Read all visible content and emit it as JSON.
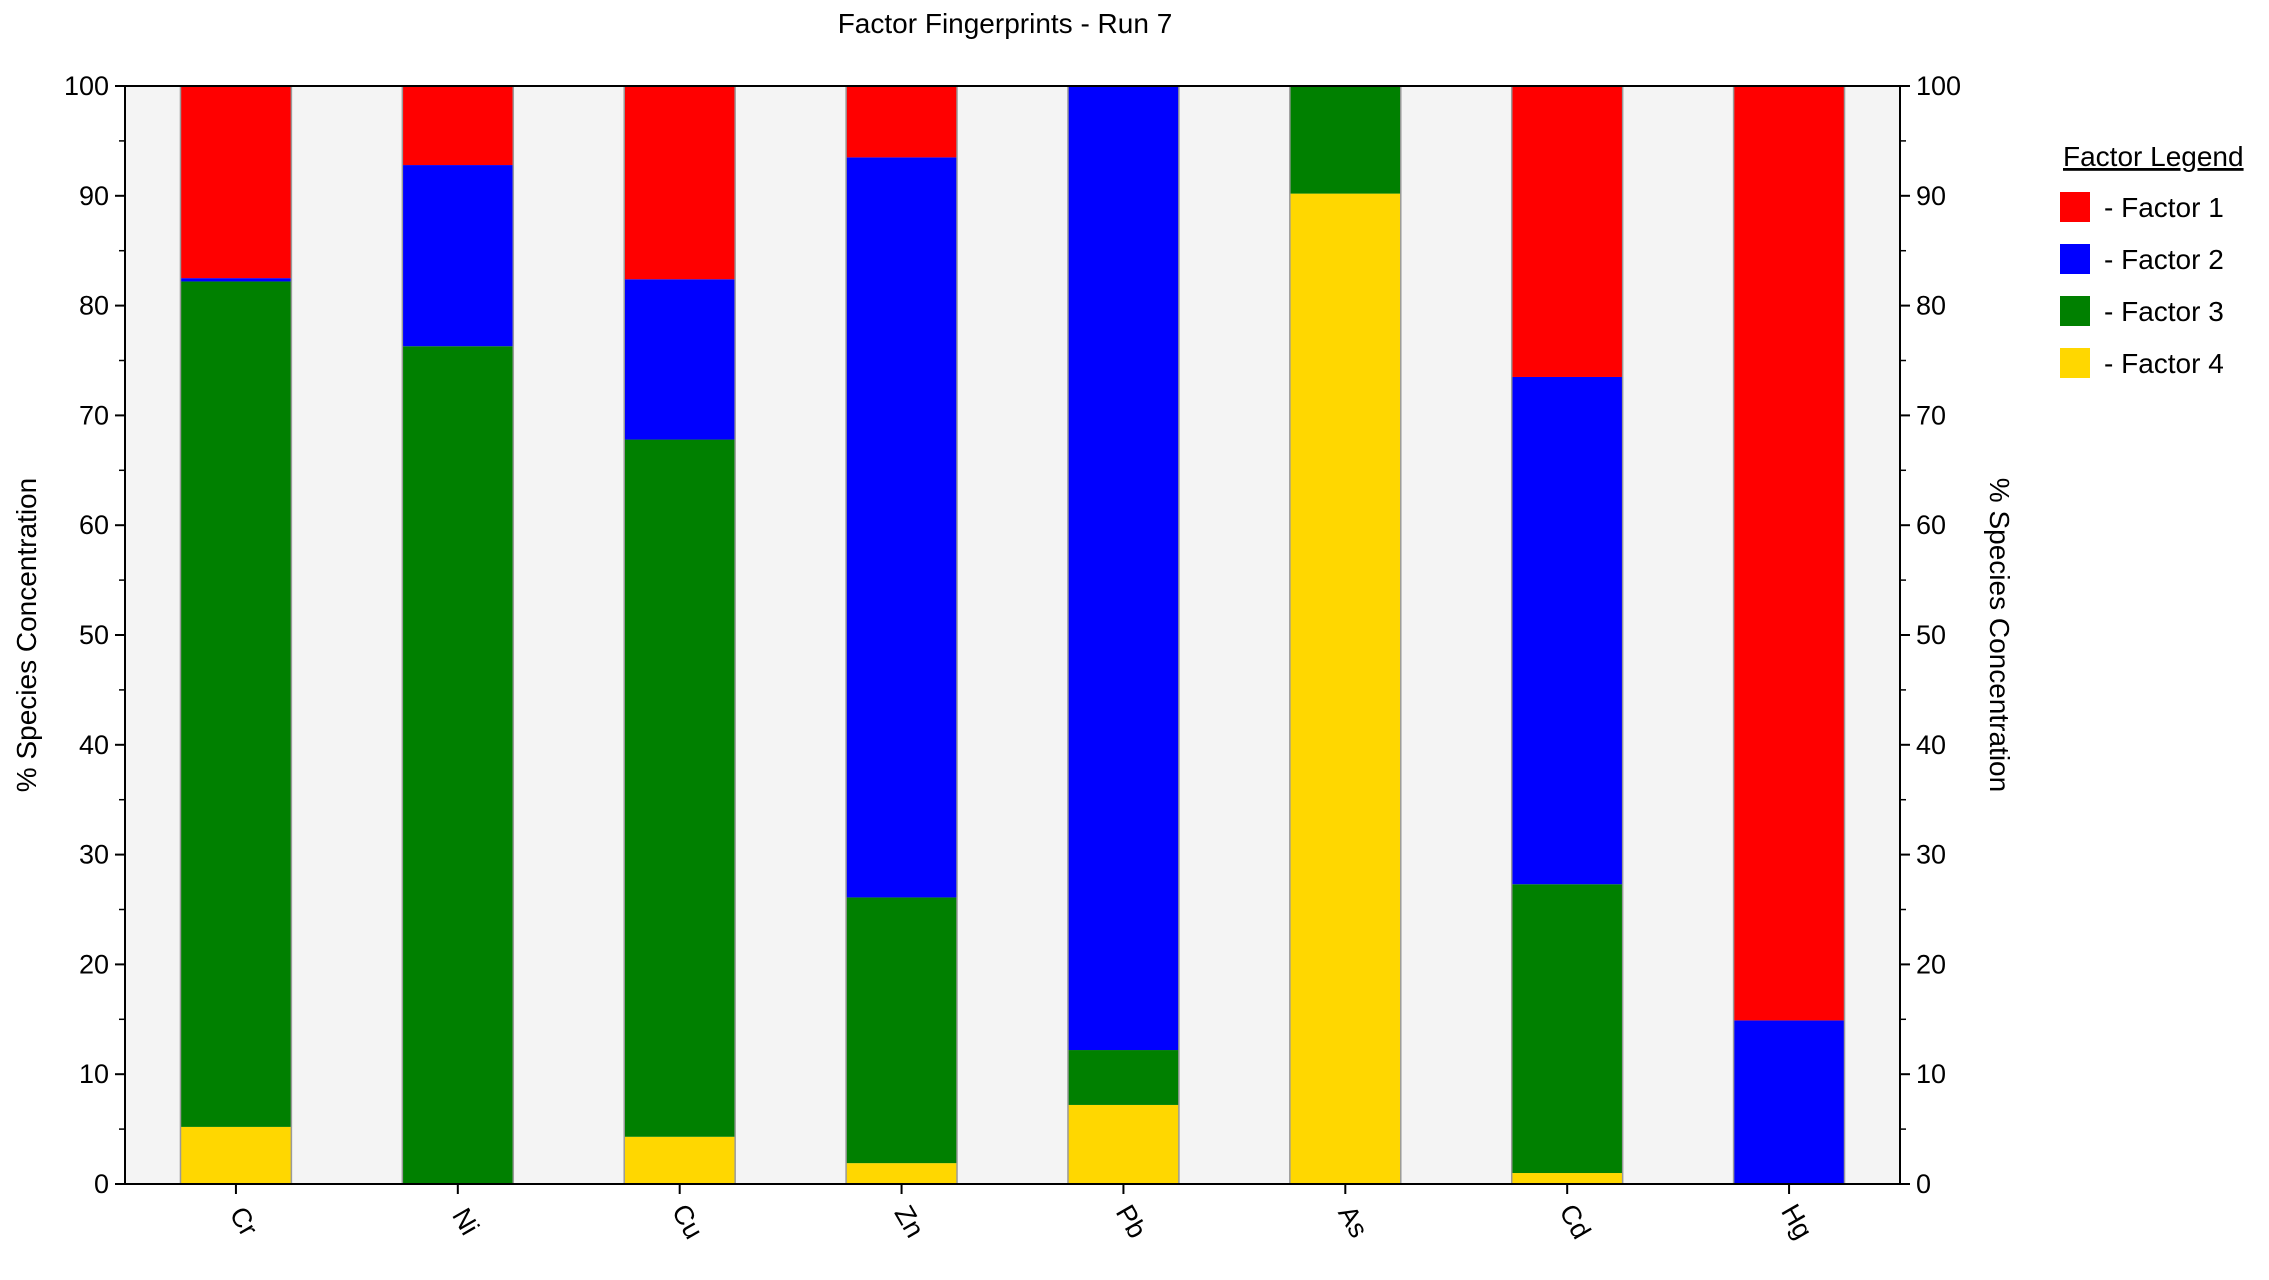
{
  "chart_data": {
    "type": "bar",
    "stacked": true,
    "title": "Factor Fingerprints - Run 7",
    "ylabel": "% Species Concentration",
    "ylabel_right": "% Species Concentration",
    "ylim": [
      0,
      100
    ],
    "yticks": [
      0,
      10,
      20,
      30,
      40,
      50,
      60,
      70,
      80,
      90,
      100
    ],
    "categories": [
      "Cr",
      "Ni",
      "Cu",
      "Zn",
      "Pb",
      "As",
      "Cd",
      "Hg"
    ],
    "legend_title": "Factor Legend",
    "legend_position": "right",
    "series": [
      {
        "name": "- Factor 4",
        "color": "#FFD700",
        "values": [
          5.2,
          0,
          4.3,
          1.9,
          7.2,
          90.2,
          1.0,
          0
        ]
      },
      {
        "name": "- Factor 3",
        "color": "#008000",
        "values": [
          77.0,
          76.3,
          63.5,
          24.2,
          5.0,
          9.8,
          26.3,
          0
        ]
      },
      {
        "name": "- Factor 2",
        "color": "#0000FF",
        "values": [
          0.3,
          16.5,
          14.6,
          67.4,
          87.8,
          0,
          46.2,
          14.9
        ]
      },
      {
        "name": "- Factor 1",
        "color": "#FF0000",
        "values": [
          17.5,
          7.2,
          17.6,
          6.5,
          0,
          0,
          26.5,
          85.1
        ]
      }
    ],
    "legend_order": [
      3,
      2,
      1,
      0
    ]
  }
}
